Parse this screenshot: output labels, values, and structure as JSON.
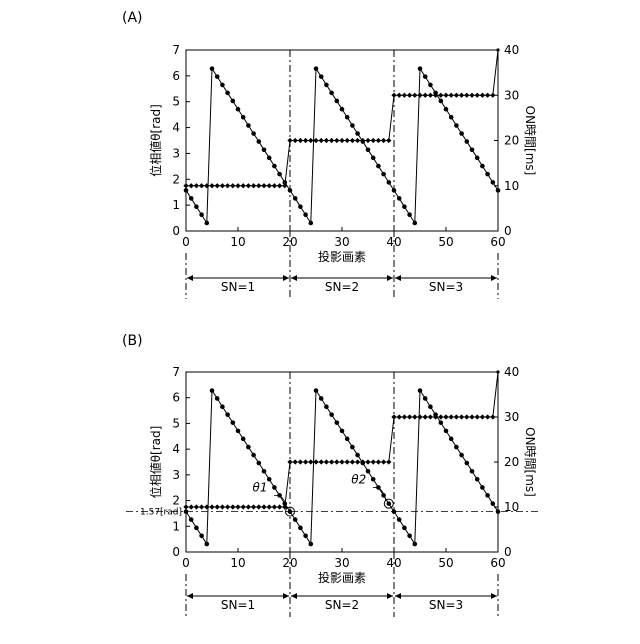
{
  "figure": {
    "panels": [
      "(A)",
      "(B)"
    ],
    "segments": [
      "SN=1",
      "SN=2",
      "SN=3"
    ]
  },
  "chart_data": [
    {
      "type": "line",
      "panel": "(A)",
      "xlabel": "投影画素",
      "ylabel_left": "位相値θ[rad]",
      "ylabel_right": "ON時間[ms]",
      "xlim": [
        0,
        60
      ],
      "ylim_left": [
        0,
        7
      ],
      "ylim_right": [
        0,
        40
      ],
      "x_ticks": [
        0,
        10,
        20,
        30,
        40,
        50,
        60
      ],
      "y_ticks_left": [
        0,
        1,
        2,
        3,
        4,
        5,
        6,
        7
      ],
      "y_ticks_right": [
        0,
        10,
        20,
        30,
        40
      ],
      "segment_boundaries": [
        0,
        20,
        40,
        60
      ],
      "segment_labels": [
        "SN=1",
        "SN=2",
        "SN=3"
      ],
      "series": [
        {
          "axis": "left",
          "marker": "circle",
          "x": [
            0,
            1,
            2,
            3,
            4,
            5,
            6,
            7,
            8,
            9,
            10,
            11,
            12,
            13,
            14,
            15,
            16,
            17,
            18,
            19,
            20,
            21,
            22,
            23,
            24,
            25,
            26,
            27,
            28,
            29,
            30,
            31,
            32,
            33,
            34,
            35,
            36,
            37,
            38,
            39,
            40,
            41,
            42,
            43,
            44,
            45,
            46,
            47,
            48,
            49,
            50,
            51,
            52,
            53,
            54,
            55,
            56,
            57,
            58,
            59,
            60
          ],
          "values": [
            1.57,
            1.26,
            0.94,
            0.63,
            0.31,
            6.28,
            5.97,
            5.65,
            5.34,
            5.03,
            4.71,
            4.4,
            4.08,
            3.77,
            3.46,
            3.14,
            2.83,
            2.51,
            2.2,
            1.88,
            1.57,
            1.26,
            0.94,
            0.63,
            0.31,
            6.28,
            5.97,
            5.65,
            5.34,
            5.03,
            4.71,
            4.4,
            4.08,
            3.77,
            3.46,
            3.14,
            2.83,
            2.51,
            2.2,
            1.88,
            1.57,
            1.26,
            0.94,
            0.63,
            0.31,
            6.28,
            5.97,
            5.65,
            5.34,
            5.03,
            4.71,
            4.4,
            4.08,
            3.77,
            3.46,
            3.14,
            2.83,
            2.51,
            2.2,
            1.88,
            1.57
          ]
        },
        {
          "axis": "right",
          "marker": "diamond",
          "x": [
            0,
            1,
            2,
            3,
            4,
            5,
            6,
            7,
            8,
            9,
            10,
            11,
            12,
            13,
            14,
            15,
            16,
            17,
            18,
            19,
            20,
            21,
            22,
            23,
            24,
            25,
            26,
            27,
            28,
            29,
            30,
            31,
            32,
            33,
            34,
            35,
            36,
            37,
            38,
            39,
            40,
            41,
            42,
            43,
            44,
            45,
            46,
            47,
            48,
            49,
            50,
            51,
            52,
            53,
            54,
            55,
            56,
            57,
            58,
            59,
            60
          ],
          "values": [
            10,
            10,
            10,
            10,
            10,
            10,
            10,
            10,
            10,
            10,
            10,
            10,
            10,
            10,
            10,
            10,
            10,
            10,
            10,
            10,
            20,
            20,
            20,
            20,
            20,
            20,
            20,
            20,
            20,
            20,
            20,
            20,
            20,
            20,
            20,
            20,
            20,
            20,
            20,
            20,
            30,
            30,
            30,
            30,
            30,
            30,
            30,
            30,
            30,
            30,
            30,
            30,
            30,
            30,
            30,
            30,
            30,
            30,
            30,
            30,
            40
          ]
        }
      ]
    },
    {
      "type": "line",
      "panel": "(B)",
      "xlabel": "投影画素",
      "ylabel_left": "位相値θ[rad]",
      "ylabel_right": "ON時間[ms]",
      "xlim": [
        0,
        60
      ],
      "ylim_left": [
        0,
        7
      ],
      "ylim_right": [
        0,
        40
      ],
      "x_ticks": [
        0,
        10,
        20,
        30,
        40,
        50,
        60
      ],
      "y_ticks_left": [
        0,
        1,
        2,
        3,
        4,
        5,
        6,
        7
      ],
      "y_ticks_right": [
        0,
        10,
        20,
        30,
        40
      ],
      "segment_boundaries": [
        0,
        20,
        40,
        60
      ],
      "segment_labels": [
        "SN=1",
        "SN=2",
        "SN=3"
      ],
      "reference_line": {
        "value": 1.57,
        "label": "1.57[rad]"
      },
      "annotations": [
        {
          "label": "θ1",
          "x": 20,
          "y": 1.57
        },
        {
          "label": "θ2",
          "x": 39,
          "y": 1.88
        }
      ],
      "series": [
        {
          "axis": "left",
          "marker": "circle",
          "x": [
            0,
            1,
            2,
            3,
            4,
            5,
            6,
            7,
            8,
            9,
            10,
            11,
            12,
            13,
            14,
            15,
            16,
            17,
            18,
            19,
            20,
            21,
            22,
            23,
            24,
            25,
            26,
            27,
            28,
            29,
            30,
            31,
            32,
            33,
            34,
            35,
            36,
            37,
            38,
            39,
            40,
            41,
            42,
            43,
            44,
            45,
            46,
            47,
            48,
            49,
            50,
            51,
            52,
            53,
            54,
            55,
            56,
            57,
            58,
            59,
            60
          ],
          "values": [
            1.57,
            1.26,
            0.94,
            0.63,
            0.31,
            6.28,
            5.97,
            5.65,
            5.34,
            5.03,
            4.71,
            4.4,
            4.08,
            3.77,
            3.46,
            3.14,
            2.83,
            2.51,
            2.2,
            1.88,
            1.57,
            1.26,
            0.94,
            0.63,
            0.31,
            6.28,
            5.97,
            5.65,
            5.34,
            5.03,
            4.71,
            4.4,
            4.08,
            3.77,
            3.46,
            3.14,
            2.83,
            2.51,
            2.2,
            1.88,
            1.57,
            1.26,
            0.94,
            0.63,
            0.31,
            6.28,
            5.97,
            5.65,
            5.34,
            5.03,
            4.71,
            4.4,
            4.08,
            3.77,
            3.46,
            3.14,
            2.83,
            2.51,
            2.2,
            1.88,
            1.57
          ]
        },
        {
          "axis": "right",
          "marker": "diamond",
          "x": [
            0,
            1,
            2,
            3,
            4,
            5,
            6,
            7,
            8,
            9,
            10,
            11,
            12,
            13,
            14,
            15,
            16,
            17,
            18,
            19,
            20,
            21,
            22,
            23,
            24,
            25,
            26,
            27,
            28,
            29,
            30,
            31,
            32,
            33,
            34,
            35,
            36,
            37,
            38,
            39,
            40,
            41,
            42,
            43,
            44,
            45,
            46,
            47,
            48,
            49,
            50,
            51,
            52,
            53,
            54,
            55,
            56,
            57,
            58,
            59,
            60
          ],
          "values": [
            10,
            10,
            10,
            10,
            10,
            10,
            10,
            10,
            10,
            10,
            10,
            10,
            10,
            10,
            10,
            10,
            10,
            10,
            10,
            10,
            20,
            20,
            20,
            20,
            20,
            20,
            20,
            20,
            20,
            20,
            20,
            20,
            20,
            20,
            20,
            20,
            20,
            20,
            20,
            20,
            30,
            30,
            30,
            30,
            30,
            30,
            30,
            30,
            30,
            30,
            30,
            30,
            30,
            30,
            30,
            30,
            30,
            30,
            30,
            30,
            40
          ]
        }
      ]
    }
  ]
}
